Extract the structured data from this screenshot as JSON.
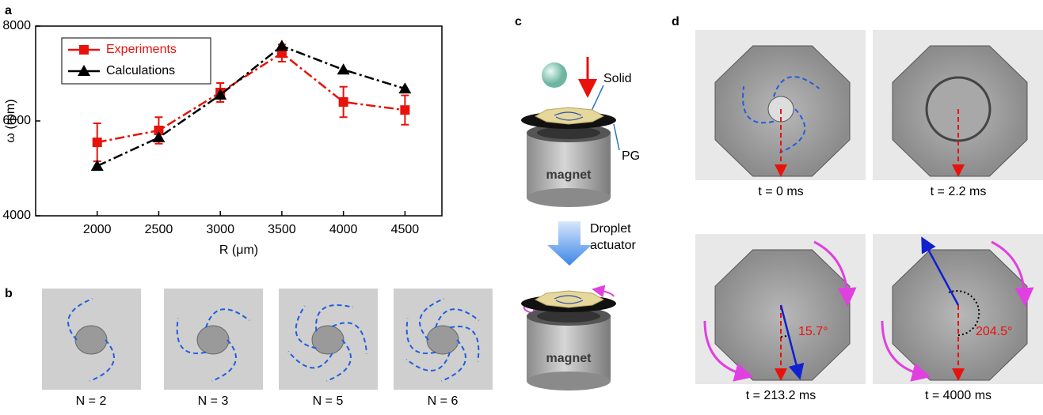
{
  "panel_labels": [
    "a",
    "b",
    "c",
    "d"
  ],
  "chart_data": {
    "type": "line",
    "xlabel": "R (μm)",
    "ylabel": "ω (rpm)",
    "x": [
      2000,
      2500,
      3000,
      3500,
      4000,
      4500
    ],
    "series": [
      {
        "name": "Experiments",
        "color": "#e8120c",
        "marker": "square",
        "values": [
          5550,
          5800,
          6600,
          7430,
          6400,
          6230
        ],
        "errors": [
          400,
          280,
          200,
          180,
          320,
          310
        ]
      },
      {
        "name": "Calculations",
        "color": "#000000",
        "marker": "triangle",
        "values": [
          5050,
          5650,
          6550,
          7580,
          7080,
          6680
        ]
      }
    ],
    "xlim": [
      1500,
      4800
    ],
    "ylim": [
      4000,
      8000
    ],
    "xticks": [
      2000,
      2500,
      3000,
      3500,
      4000,
      4500
    ],
    "yticks": [
      4000,
      6000,
      8000
    ],
    "legend": "upper left"
  },
  "panel_b": {
    "captions": [
      "N = 2",
      "N = 3",
      "N = 5",
      "N = 6"
    ]
  },
  "panel_c": {
    "solid": "Solid",
    "pg": "PG",
    "magnet_top": "magnet",
    "magnet_bottom": "magnet",
    "actuator": [
      "Droplet",
      "actuator"
    ]
  },
  "panel_d": {
    "captions": [
      "t = 0 ms",
      "t = 2.2 ms",
      "t = 213.2 ms",
      "t = 4000 ms"
    ],
    "angles": [
      "15.7°",
      "204.5°"
    ]
  }
}
